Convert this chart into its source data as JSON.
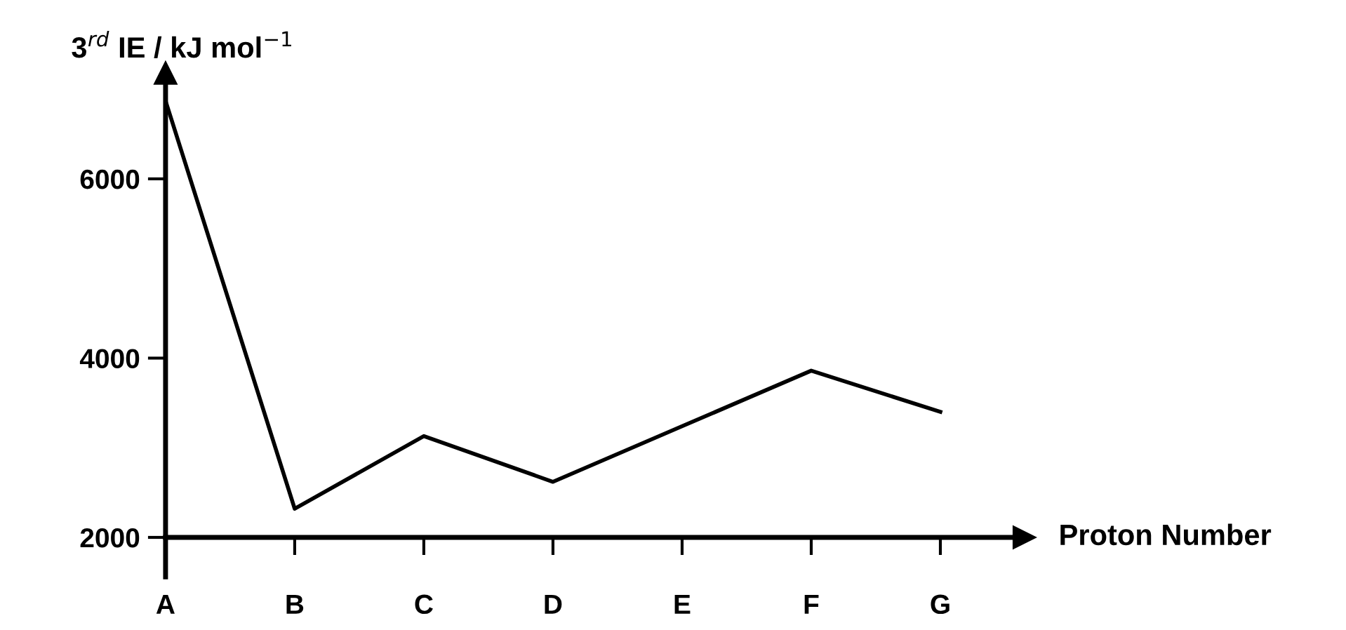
{
  "chart_data": {
    "type": "line",
    "ylabel": "3$^{rd}$ IE / kJ mol$^{−1}$",
    "xlabel": "Proton Number",
    "categories": [
      "A",
      "B",
      "C",
      "D",
      "E",
      "F",
      "G"
    ],
    "values": [
      6870,
      2320,
      3130,
      2620,
      3240,
      3860,
      3400
    ],
    "color": "#000000",
    "ylim": [
      2000,
      7180
    ],
    "yticks": [
      2000,
      4000,
      6000
    ]
  }
}
